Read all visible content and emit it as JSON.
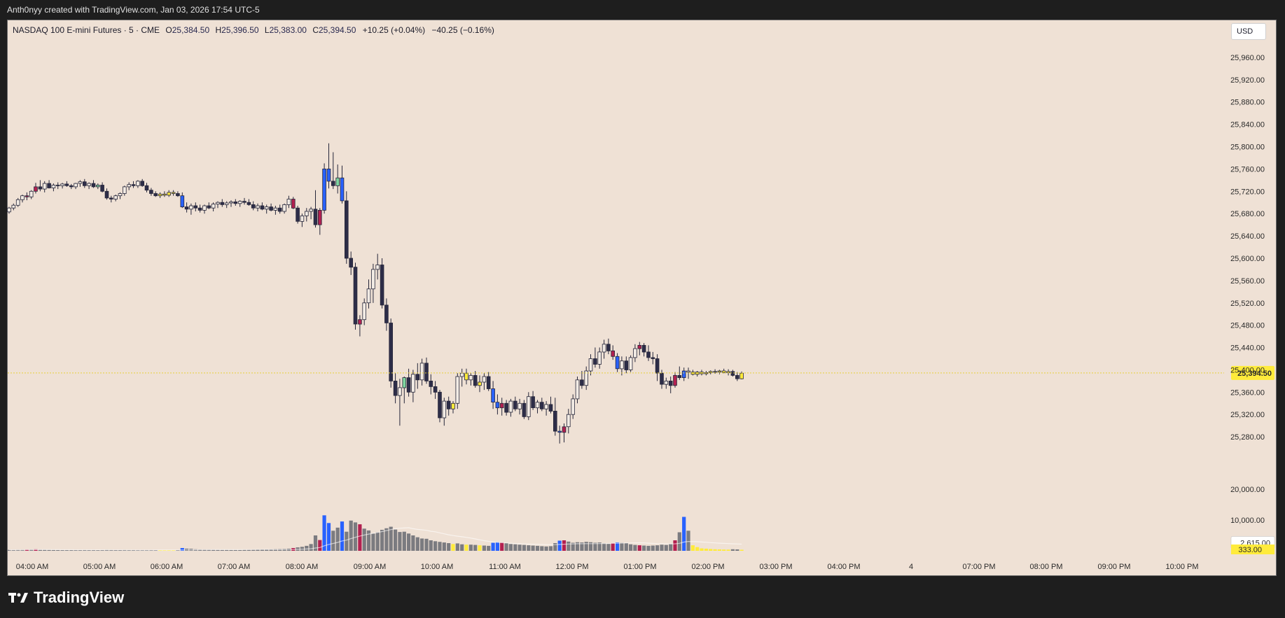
{
  "caption": "Anth0nyy created with TradingView.com, Jan 03, 2026 17:54 UTC-5",
  "legend": {
    "symbol": "NASDAQ 100 E-mini Futures · 5 · CME",
    "open_label": "O",
    "open": "25,384.50",
    "high_label": "H",
    "high": "25,396.50",
    "low_label": "L",
    "low": "25,383.00",
    "close_label": "C",
    "close": "25,394.50",
    "change_vs_prev": "+10.25 (+0.04%)",
    "change_total": "−40.25 (−0.16%)"
  },
  "currency": "USD",
  "brand": "TradingView",
  "colors": {
    "background": "#efe1d5",
    "up_candle": "#f2ebe4",
    "down_candle": "#2d2d48",
    "up_strong": "#2962ff",
    "down_strong": "#b22050",
    "neutral_volume": "#7b7b80",
    "quiet": "#ffeb3b",
    "last_price_bg": "#ffeb3b"
  },
  "chart_data": {
    "type": "candlestick",
    "ylim": [
      25240,
      25980
    ],
    "y_ticks": [
      "25,960.00",
      "25,920.00",
      "25,880.00",
      "25,840.00",
      "25,800.00",
      "25,760.00",
      "25,720.00",
      "25,680.00",
      "25,640.00",
      "25,600.00",
      "25,560.00",
      "25,520.00",
      "25,480.00",
      "25,440.00",
      "25,400.00",
      "25,360.00",
      "25,320.00",
      "25,280.00"
    ],
    "y_tick_values": [
      25960,
      25920,
      25880,
      25840,
      25800,
      25760,
      25720,
      25680,
      25640,
      25600,
      25560,
      25520,
      25480,
      25440,
      25400,
      25360,
      25320,
      25280
    ],
    "x_ticks": [
      "04:00 AM",
      "05:00 AM",
      "06:00 AM",
      "07:00 AM",
      "08:00 AM",
      "09:00 AM",
      "10:00 AM",
      "11:00 AM",
      "12:00 PM",
      "01:00 PM",
      "02:00 PM",
      "03:00 PM",
      "04:00 PM",
      "4",
      "07:00 PM",
      "08:00 PM",
      "09:00 PM",
      "10:00 PM"
    ],
    "last_price": 25394.5,
    "last_price_label": "25,394.50",
    "volume_axis": {
      "ticks": [
        "20,000.00",
        "10,000.00"
      ],
      "tick_values": [
        20000,
        10000
      ],
      "vmax": 22000,
      "last_volume_label": "333.00",
      "volume_ma_label": "2,615.00",
      "volume_ma_value": 2615
    },
    "candles": [
      [
        25683,
        25692,
        25680,
        25690,
        "u",
        300
      ],
      [
        25690,
        25698,
        25686,
        25695,
        "u",
        280
      ],
      [
        25695,
        25708,
        25692,
        25705,
        "u",
        320
      ],
      [
        25705,
        25714,
        25700,
        25712,
        "u",
        350
      ],
      [
        25712,
        25718,
        25704,
        25710,
        "r",
        400
      ],
      [
        25710,
        25722,
        25706,
        25720,
        "u",
        420
      ],
      [
        25720,
        25735,
        25716,
        25728,
        "r",
        500
      ],
      [
        25728,
        25740,
        25720,
        25724,
        "d",
        380
      ],
      [
        25724,
        25738,
        25718,
        25734,
        "u",
        360
      ],
      [
        25734,
        25740,
        25725,
        25726,
        "d",
        330
      ],
      [
        25726,
        25734,
        25720,
        25731,
        "u",
        300
      ],
      [
        25731,
        25736,
        25724,
        25730,
        "d",
        280
      ],
      [
        25730,
        25735,
        25725,
        25733,
        "u",
        260
      ],
      [
        25733,
        25738,
        25728,
        25730,
        "d",
        250
      ],
      [
        25730,
        25733,
        25724,
        25728,
        "d",
        240
      ],
      [
        25728,
        25735,
        25724,
        25734,
        "u",
        250
      ],
      [
        25734,
        25740,
        25728,
        25737,
        "u",
        260
      ],
      [
        25737,
        25742,
        25726,
        25730,
        "d",
        270
      ],
      [
        25730,
        25736,
        25724,
        25734,
        "u",
        250
      ],
      [
        25734,
        25740,
        25726,
        25728,
        "d",
        240
      ],
      [
        25728,
        25734,
        25724,
        25731,
        "g",
        230
      ],
      [
        25731,
        25736,
        25718,
        25720,
        "d",
        260
      ],
      [
        25720,
        25725,
        25705,
        25708,
        "d",
        300
      ],
      [
        25708,
        25712,
        25700,
        25706,
        "d",
        280
      ],
      [
        25706,
        25714,
        25702,
        25712,
        "u",
        260
      ],
      [
        25712,
        25718,
        25706,
        25716,
        "u",
        250
      ],
      [
        25716,
        25730,
        25712,
        25728,
        "u",
        270
      ],
      [
        25728,
        25736,
        25722,
        25732,
        "u",
        260
      ],
      [
        25732,
        25738,
        25726,
        25730,
        "d",
        240
      ],
      [
        25730,
        25740,
        25726,
        25738,
        "u",
        250
      ],
      [
        25738,
        25742,
        25728,
        25730,
        "d",
        240
      ],
      [
        25730,
        25735,
        25718,
        25722,
        "d",
        260
      ],
      [
        25722,
        25726,
        25712,
        25716,
        "d",
        240
      ],
      [
        25716,
        25720,
        25710,
        25712,
        "d",
        220
      ],
      [
        25712,
        25718,
        25708,
        25715,
        "q",
        200
      ],
      [
        25715,
        25720,
        25710,
        25713,
        "q",
        190
      ],
      [
        25713,
        25722,
        25710,
        25718,
        "q",
        200
      ],
      [
        25718,
        25722,
        25712,
        25716,
        "q",
        190
      ],
      [
        25716,
        25720,
        25710,
        25712,
        "d",
        220
      ],
      [
        25712,
        25718,
        25690,
        25692,
        "b",
        900
      ],
      [
        25692,
        25700,
        25682,
        25688,
        "d",
        700
      ],
      [
        25688,
        25698,
        25678,
        25694,
        "u",
        650
      ],
      [
        25694,
        25700,
        25684,
        25690,
        "d",
        500
      ],
      [
        25690,
        25696,
        25682,
        25686,
        "d",
        450
      ],
      [
        25686,
        25696,
        25680,
        25694,
        "u",
        400
      ],
      [
        25694,
        25700,
        25688,
        25690,
        "d",
        380
      ],
      [
        25690,
        25700,
        25684,
        25697,
        "u",
        360
      ],
      [
        25697,
        25702,
        25690,
        25700,
        "u",
        340
      ],
      [
        25700,
        25706,
        25692,
        25696,
        "d",
        320
      ],
      [
        25696,
        25702,
        25690,
        25699,
        "u",
        320
      ],
      [
        25699,
        25704,
        25692,
        25701,
        "u",
        300
      ],
      [
        25701,
        25706,
        25694,
        25698,
        "d",
        290
      ],
      [
        25698,
        25704,
        25692,
        25702,
        "u",
        300
      ],
      [
        25702,
        25708,
        25696,
        25700,
        "d",
        320
      ],
      [
        25700,
        25706,
        25694,
        25696,
        "d",
        340
      ],
      [
        25696,
        25702,
        25686,
        25690,
        "d",
        380
      ],
      [
        25690,
        25698,
        25684,
        25694,
        "u",
        400
      ],
      [
        25694,
        25700,
        25686,
        25688,
        "d",
        420
      ],
      [
        25688,
        25696,
        25680,
        25692,
        "u",
        450
      ],
      [
        25692,
        25698,
        25684,
        25686,
        "d",
        480
      ],
      [
        25686,
        25694,
        25678,
        25690,
        "u",
        520
      ],
      [
        25690,
        25696,
        25680,
        25684,
        "d",
        560
      ],
      [
        25684,
        25698,
        25680,
        25696,
        "u",
        620
      ],
      [
        25696,
        25712,
        25690,
        25706,
        "u",
        700
      ],
      [
        25706,
        25710,
        25688,
        25690,
        "r",
        900
      ],
      [
        25690,
        25694,
        25662,
        25666,
        "d",
        1100
      ],
      [
        25666,
        25680,
        25656,
        25676,
        "u",
        1300
      ],
      [
        25676,
        25690,
        25666,
        25684,
        "u",
        1600
      ],
      [
        25684,
        25692,
        25670,
        25688,
        "u",
        2200
      ],
      [
        25688,
        25722,
        25655,
        25660,
        "d",
        5000
      ],
      [
        25660,
        25690,
        25642,
        25686,
        "r",
        3500
      ],
      [
        25686,
        25770,
        25680,
        25760,
        "b",
        11500
      ],
      [
        25760,
        25806,
        25725,
        25738,
        "b",
        9000
      ],
      [
        25738,
        25790,
        25724,
        25730,
        "d",
        6500
      ],
      [
        25730,
        25768,
        25716,
        25744,
        "g",
        7500
      ],
      [
        25744,
        25766,
        25698,
        25703,
        "b",
        9500
      ],
      [
        25703,
        25720,
        25590,
        25600,
        "d",
        6200
      ],
      [
        25600,
        25612,
        25570,
        25584,
        "d",
        9800
      ],
      [
        25584,
        25592,
        25472,
        25482,
        "d",
        9200
      ],
      [
        25482,
        25498,
        25460,
        25490,
        "r",
        8600
      ],
      [
        25490,
        25528,
        25480,
        25520,
        "u",
        7200
      ],
      [
        25520,
        25562,
        25510,
        25545,
        "u",
        6600
      ],
      [
        25545,
        25590,
        25520,
        25580,
        "u",
        5600
      ],
      [
        25580,
        25608,
        25562,
        25588,
        "u",
        6000
      ],
      [
        25588,
        25600,
        25510,
        25516,
        "d",
        6800
      ],
      [
        25516,
        25528,
        25470,
        25484,
        "d",
        7300
      ],
      [
        25484,
        25492,
        25368,
        25380,
        "d",
        7800
      ],
      [
        25380,
        25394,
        25340,
        25354,
        "d",
        6900
      ],
      [
        25354,
        25384,
        25300,
        25368,
        "u",
        6100
      ],
      [
        25368,
        25388,
        25340,
        25386,
        "g",
        6200
      ],
      [
        25386,
        25402,
        25352,
        25360,
        "d",
        5600
      ],
      [
        25360,
        25400,
        25342,
        25392,
        "u",
        5000
      ],
      [
        25392,
        25412,
        25366,
        25382,
        "d",
        4400
      ],
      [
        25382,
        25420,
        25372,
        25412,
        "u",
        4000
      ],
      [
        25412,
        25422,
        25375,
        25380,
        "d",
        3900
      ],
      [
        25380,
        25392,
        25356,
        25370,
        "d",
        3400
      ],
      [
        25370,
        25380,
        25348,
        25360,
        "d",
        3100
      ],
      [
        25360,
        25364,
        25306,
        25314,
        "d",
        2900
      ],
      [
        25314,
        25350,
        25300,
        25344,
        "u",
        2700
      ],
      [
        25344,
        25352,
        25318,
        25330,
        "d",
        2500
      ],
      [
        25330,
        25344,
        25322,
        25340,
        "q",
        2200
      ],
      [
        25340,
        25394,
        25330,
        25388,
        "u",
        2400
      ],
      [
        25388,
        25402,
        25370,
        25394,
        "u",
        2100
      ],
      [
        25394,
        25402,
        25374,
        25382,
        "q",
        2000
      ],
      [
        25382,
        25394,
        25372,
        25390,
        "u",
        2000
      ],
      [
        25390,
        25398,
        25368,
        25372,
        "d",
        1900
      ],
      [
        25372,
        25390,
        25360,
        25378,
        "q",
        1800
      ],
      [
        25378,
        25394,
        25364,
        25388,
        "u",
        1700
      ],
      [
        25388,
        25396,
        25362,
        25366,
        "d",
        1600
      ],
      [
        25366,
        25380,
        25330,
        25342,
        "b",
        2600
      ],
      [
        25342,
        25356,
        25320,
        25332,
        "b",
        2800
      ],
      [
        25332,
        25350,
        25318,
        25340,
        "r",
        2700
      ],
      [
        25340,
        25346,
        25318,
        25324,
        "d",
        2500
      ],
      [
        25324,
        25348,
        25316,
        25344,
        "u",
        2200
      ],
      [
        25344,
        25352,
        25326,
        25330,
        "d",
        2100
      ],
      [
        25330,
        25348,
        25320,
        25340,
        "u",
        2000
      ],
      [
        25340,
        25346,
        25312,
        25316,
        "d",
        1900
      ],
      [
        25316,
        25360,
        25310,
        25352,
        "u",
        1800
      ],
      [
        25352,
        25362,
        25328,
        25332,
        "d",
        1700
      ],
      [
        25332,
        25346,
        25322,
        25342,
        "u",
        1600
      ],
      [
        25342,
        25350,
        25326,
        25330,
        "d",
        1500
      ],
      [
        25330,
        25344,
        25318,
        25338,
        "u",
        1400
      ],
      [
        25338,
        25352,
        25322,
        25326,
        "d",
        1500
      ],
      [
        25326,
        25350,
        25282,
        25290,
        "d",
        2500
      ],
      [
        25290,
        25300,
        25268,
        25288,
        "b",
        3300
      ],
      [
        25288,
        25304,
        25270,
        25298,
        "r",
        3400
      ],
      [
        25298,
        25330,
        25286,
        25320,
        "u",
        3000
      ],
      [
        25320,
        25356,
        25312,
        25348,
        "u",
        2600
      ],
      [
        25348,
        25388,
        25340,
        25382,
        "u",
        2800
      ],
      [
        25382,
        25398,
        25366,
        25372,
        "d",
        2700
      ],
      [
        25372,
        25406,
        25364,
        25398,
        "u",
        2900
      ],
      [
        25398,
        25428,
        25390,
        25420,
        "u",
        2800
      ],
      [
        25420,
        25440,
        25404,
        25410,
        "d",
        2600
      ],
      [
        25410,
        25440,
        25402,
        25432,
        "u",
        2700
      ],
      [
        25432,
        25454,
        25420,
        25446,
        "u",
        2400
      ],
      [
        25446,
        25456,
        25428,
        25434,
        "d",
        2300
      ],
      [
        25434,
        25444,
        25418,
        25424,
        "r",
        2500
      ],
      [
        25424,
        25430,
        25396,
        25402,
        "b",
        2700
      ],
      [
        25402,
        25424,
        25390,
        25416,
        "u",
        2600
      ],
      [
        25416,
        25424,
        25394,
        25400,
        "d",
        2500
      ],
      [
        25400,
        25426,
        25396,
        25422,
        "u",
        2100
      ],
      [
        25422,
        25446,
        25414,
        25438,
        "u",
        1900
      ],
      [
        25438,
        25450,
        25426,
        25444,
        "r",
        1800
      ],
      [
        25444,
        25448,
        25424,
        25432,
        "d",
        1700
      ],
      [
        25432,
        25444,
        25416,
        25422,
        "d",
        1600
      ],
      [
        25422,
        25432,
        25410,
        25420,
        "d",
        1700
      ],
      [
        25420,
        25428,
        25380,
        25394,
        "d",
        1800
      ],
      [
        25394,
        25400,
        25366,
        25374,
        "d",
        2000
      ],
      [
        25374,
        25386,
        25366,
        25380,
        "u",
        1900
      ],
      [
        25380,
        25388,
        25358,
        25372,
        "d",
        2200
      ],
      [
        25372,
        25396,
        25368,
        25390,
        "r",
        3400
      ],
      [
        25390,
        25406,
        25382,
        25386,
        "d",
        6000
      ],
      [
        25386,
        25404,
        25380,
        25398,
        "b",
        11000
      ],
      [
        25398,
        25404,
        25384,
        25396,
        "u",
        6500
      ],
      [
        25396,
        25400,
        25390,
        25392,
        "q",
        1800
      ],
      [
        25392,
        25398,
        25388,
        25396,
        "q",
        1200
      ],
      [
        25396,
        25400,
        25390,
        25393,
        "q",
        800
      ],
      [
        25393,
        25398,
        25390,
        25395,
        "q",
        700
      ],
      [
        25395,
        25399,
        25392,
        25397,
        "q",
        600
      ],
      [
        25397,
        25401,
        25393,
        25396,
        "q",
        500
      ],
      [
        25396,
        25400,
        25392,
        25398,
        "q",
        450
      ],
      [
        25398,
        25402,
        25394,
        25395,
        "q",
        400
      ],
      [
        25395,
        25401,
        25390,
        25397,
        "q",
        380
      ],
      [
        25397,
        25400,
        25388,
        25390,
        "d",
        500
      ],
      [
        25390,
        25396,
        25380,
        25384,
        "d",
        450
      ],
      [
        25384,
        25397,
        25383,
        25394,
        "q",
        333
      ]
    ]
  }
}
